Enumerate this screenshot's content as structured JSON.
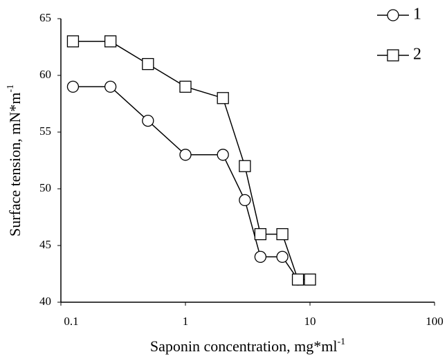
{
  "chart_data": {
    "type": "line",
    "x_label": {
      "text": "Saponin concentration, mg*ml",
      "sup": "-1"
    },
    "y_label": {
      "text": "Surface tension, mN*m",
      "sup": "-1"
    },
    "x_log": true,
    "xlim": [
      0.1,
      100
    ],
    "xticks": [
      0.1,
      1,
      10,
      100
    ],
    "ylim": [
      40,
      65
    ],
    "yticks": [
      40,
      45,
      50,
      55,
      60,
      65
    ],
    "grid": false,
    "legend": "upper right",
    "series": [
      {
        "name": "1",
        "marker": "circle",
        "color": "#000000",
        "x": [
          0.125,
          0.25,
          0.5,
          1,
          2,
          3,
          4,
          6,
          8
        ],
        "values": [
          59,
          59,
          56,
          53,
          53,
          49,
          44,
          44,
          42
        ]
      },
      {
        "name": "2",
        "marker": "square",
        "color": "#000000",
        "x": [
          0.125,
          0.25,
          0.5,
          1,
          2,
          3,
          4,
          6,
          8,
          10
        ],
        "values": [
          63,
          63,
          61,
          59,
          58,
          52,
          46,
          46,
          42,
          42
        ]
      }
    ]
  }
}
